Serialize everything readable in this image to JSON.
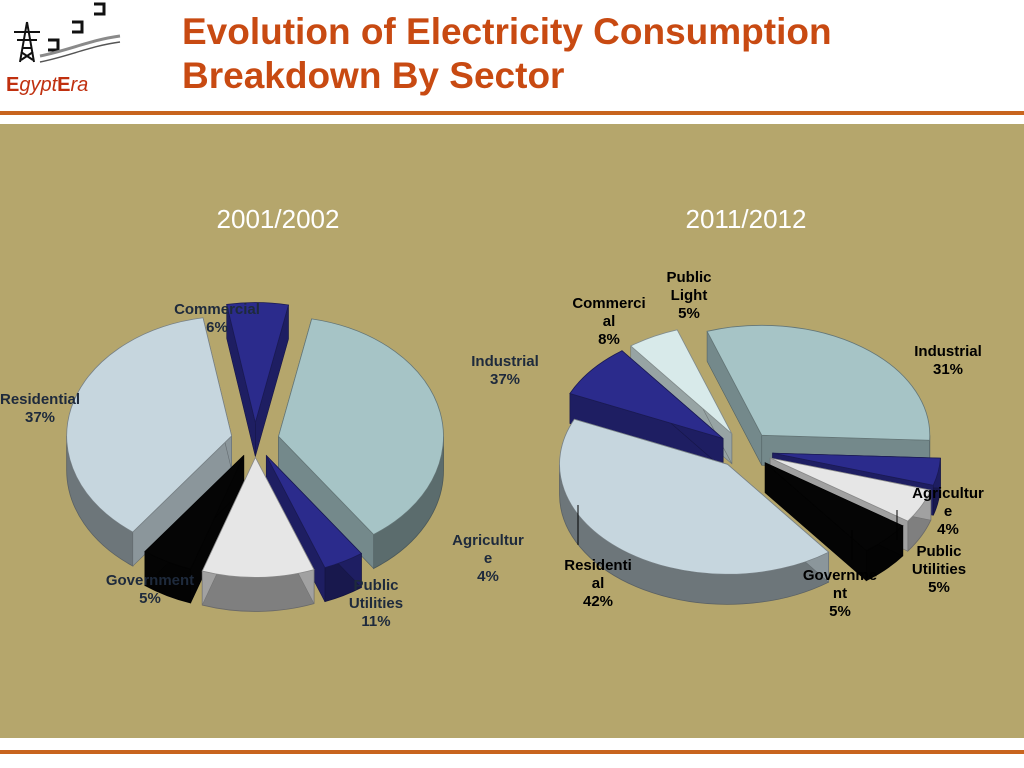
{
  "logo": {
    "e1": "E",
    "gypt": "gypt",
    "e2": "E",
    "ra": "ra"
  },
  "title": {
    "line1": "Evolution of Electricity Consumption",
    "line2": "Breakdown By Sector"
  },
  "chart_data": [
    {
      "type": "pie",
      "title": "2001/2002",
      "slices": [
        {
          "name": "Commercial",
          "value": 6,
          "label_lines": [
            "Commercial",
            "6%"
          ],
          "color": "#2b2b8c"
        },
        {
          "name": "Industrial",
          "value": 37,
          "label_lines": [
            "Industrial",
            "37%"
          ],
          "color": "#a6c4c6"
        },
        {
          "name": "Agriculture",
          "value": 4,
          "label_lines": [
            "Agricultur",
            "e",
            "4%"
          ],
          "color": "#2b2b8c"
        },
        {
          "name": "Public Utilities",
          "value": 11,
          "label_lines": [
            "Public",
            "Utilities",
            "11%"
          ],
          "color": "#e6e6e6"
        },
        {
          "name": "Government",
          "value": 5,
          "label_lines": [
            "Government",
            "5%"
          ],
          "color": "#050505"
        },
        {
          "name": "Residential",
          "value": 37,
          "label_lines": [
            "Residential",
            "37%"
          ],
          "color": "#c6d6de"
        }
      ]
    },
    {
      "type": "pie",
      "title": "2011/2012",
      "slices": [
        {
          "name": "Public Light",
          "value": 5,
          "label_lines": [
            "Public",
            "Light",
            "5%"
          ],
          "color": "#d8eaea"
        },
        {
          "name": "Industrial",
          "value": 31,
          "label_lines": [
            "Industrial",
            "31%"
          ],
          "color": "#a6c4c6"
        },
        {
          "name": "Agriculture",
          "value": 4,
          "label_lines": [
            "Agricultur",
            "e",
            "4%"
          ],
          "color": "#2b2b8c"
        },
        {
          "name": "Public Utilities",
          "value": 5,
          "label_lines": [
            "Public",
            "Utilities",
            "5%"
          ],
          "color": "#e6e6e6"
        },
        {
          "name": "Government",
          "value": 5,
          "label_lines": [
            "Governme",
            "nt",
            "5%"
          ],
          "color": "#050505"
        },
        {
          "name": "Residential",
          "value": 42,
          "label_lines": [
            "Residenti",
            "al",
            "42%"
          ],
          "color": "#c6d6de"
        },
        {
          "name": "Commercial",
          "value": 8,
          "label_lines": [
            "Commerci",
            "al",
            "8%"
          ],
          "color": "#2b2b8c"
        }
      ]
    }
  ]
}
